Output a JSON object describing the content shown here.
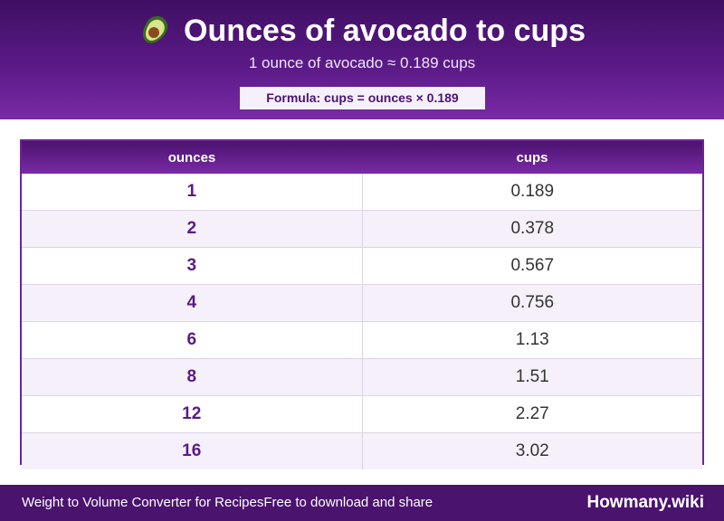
{
  "header": {
    "icon": "avocado-icon",
    "title": "Ounces of avocado to cups",
    "subtitle": "1 ounce of avocado ≈ 0.189 cups",
    "formula": "Formula: cups = ounces × 0.189"
  },
  "table": {
    "columns": [
      "ounces",
      "cups"
    ],
    "rows": [
      {
        "ounces": "1",
        "cups": "0.189"
      },
      {
        "ounces": "2",
        "cups": "0.378"
      },
      {
        "ounces": "3",
        "cups": "0.567"
      },
      {
        "ounces": "4",
        "cups": "0.756"
      },
      {
        "ounces": "6",
        "cups": "1.13"
      },
      {
        "ounces": "8",
        "cups": "1.51"
      },
      {
        "ounces": "12",
        "cups": "2.27"
      },
      {
        "ounces": "16",
        "cups": "3.02"
      }
    ]
  },
  "footer": {
    "left_text": "Weight to Volume Converter for Recipes",
    "share_text": "Free to download and share",
    "brand": "Howmany.wiki"
  },
  "colors": {
    "header_dark": "#3f0f63",
    "header_light": "#7a2aa6",
    "accent": "#5a1a86",
    "footer": "#4a136e"
  }
}
